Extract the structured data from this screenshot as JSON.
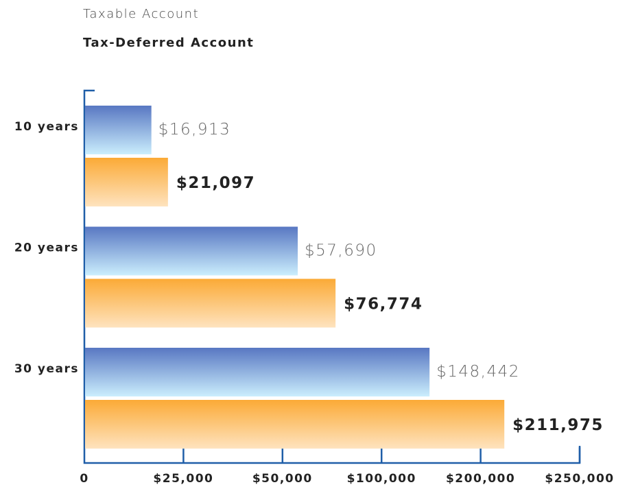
{
  "chart_data": {
    "type": "barh",
    "categories": [
      "10 years",
      "20 years",
      "30 years"
    ],
    "series": [
      {
        "name": "Taxable Account",
        "gradient": [
          "#5877c2",
          "#cbeefd"
        ],
        "values": [
          16913,
          57690,
          148442
        ],
        "value_labels": [
          "$16,913",
          "$57,690",
          "$148,442"
        ]
      },
      {
        "name": "Tax-Deferred Account",
        "gradient": [
          "#fbaa36",
          "#fee3bf"
        ],
        "values": [
          21097,
          76774,
          211975
        ],
        "value_labels": [
          "$21,097",
          "$76,774",
          "$211,975"
        ]
      }
    ],
    "xlim": [
      0,
      250000
    ],
    "xticks": [
      0,
      {
        "value": 25000,
        "label": "$25,000"
      },
      {
        "value": 50000,
        "label": "$50,000"
      },
      {
        "value": 100000,
        "label": "$100,000"
      },
      {
        "value": 200000,
        "label": "$200,000"
      },
      {
        "value": 250000,
        "label": "$250,000"
      }
    ]
  }
}
